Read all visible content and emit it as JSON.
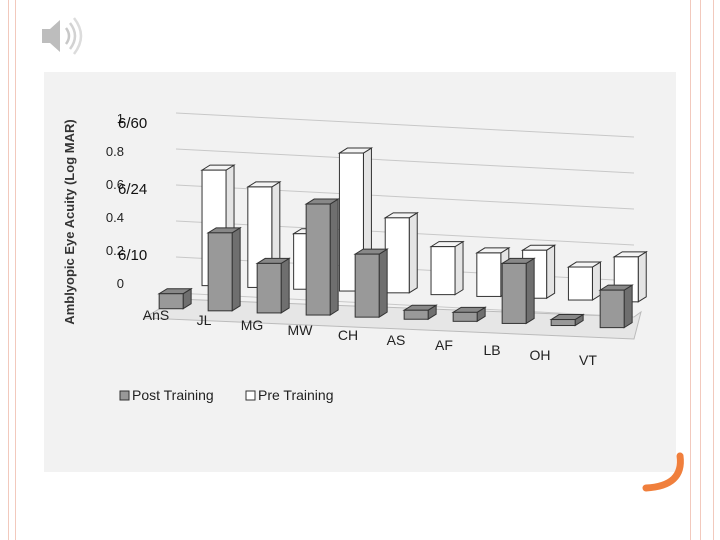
{
  "slide": {
    "speaker_icon": "speaker-icon",
    "accent_color": "#f07f3c"
  },
  "chart_data": {
    "type": "bar",
    "ylabel": "Amblyopic Eye Acuity (Log MAR)",
    "ylim": [
      0,
      1
    ],
    "yticks": [
      "0",
      "0.2",
      "0.4",
      "0.6",
      "0.8",
      "1"
    ],
    "annotations": [
      {
        "text": "6/60",
        "y": 1
      },
      {
        "text": "6/24",
        "y": 0.6
      },
      {
        "text": "6/10",
        "y": 0.2
      }
    ],
    "categories": [
      "AnS",
      "JL",
      "MG",
      "MW",
      "CH",
      "AS",
      "AF",
      "LB",
      "OH",
      "VT"
    ],
    "series": [
      {
        "name": "Post Training",
        "color": "#999999",
        "values": [
          0.1,
          0.52,
          0.33,
          0.74,
          0.42,
          0.06,
          0.06,
          0.4,
          0.04,
          0.25
        ]
      },
      {
        "name": "Pre Training",
        "color": "#ffffff",
        "values": [
          0.77,
          0.67,
          0.37,
          0.92,
          0.5,
          0.32,
          0.29,
          0.32,
          0.22,
          0.3
        ]
      }
    ],
    "legend": "bottom-left",
    "grid": true
  }
}
